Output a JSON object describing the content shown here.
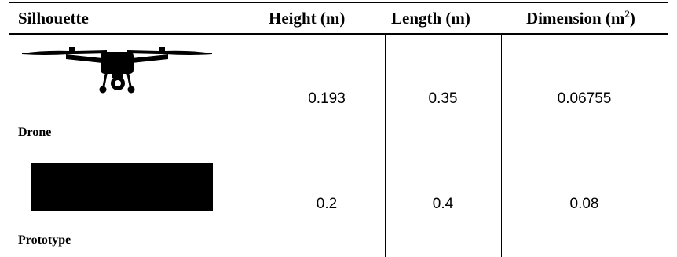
{
  "table": {
    "headers": {
      "silhouette": "Silhouette",
      "height": "Height (m)",
      "length": "Length (m)",
      "dimension_prefix": "Dimension (m",
      "dimension_sup": "2",
      "dimension_suffix": ")"
    },
    "rows": [
      {
        "label": "Drone",
        "silhouette_icon": "drone-silhouette-icon",
        "height": "0.193",
        "length": "0.35",
        "dimension": "0.06755"
      },
      {
        "label": "Prototype",
        "silhouette_icon": "prototype-rectangle-silhouette",
        "height": "0.2",
        "length": "0.4",
        "dimension": "0.08"
      }
    ]
  }
}
